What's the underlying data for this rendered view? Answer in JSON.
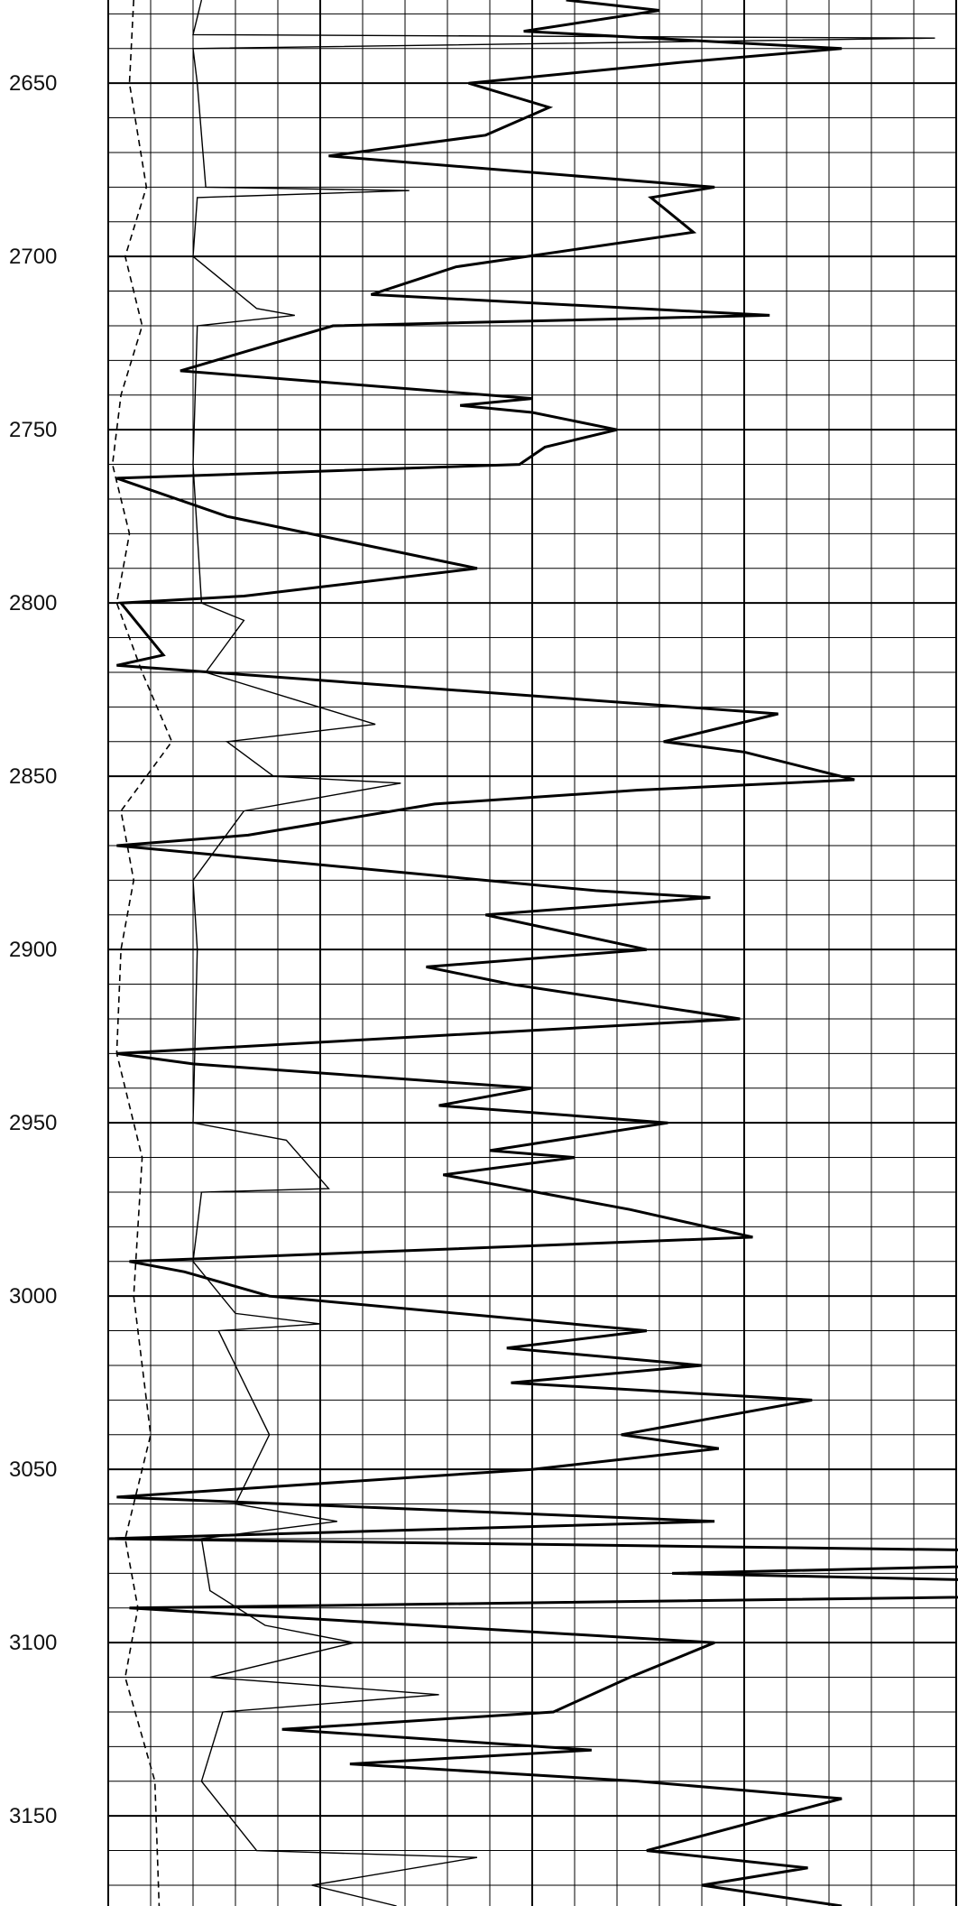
{
  "chart_data": {
    "type": "line",
    "title": "",
    "xlabel": "",
    "ylabel": "",
    "ylim": [
      2626,
      3176
    ],
    "y_axis_inverted": true,
    "y_ticks": [
      "2650",
      "2700",
      "2750",
      "2800",
      "2850",
      "2900",
      "2950",
      "3000",
      "3050",
      "3100",
      "3150"
    ],
    "grid": true,
    "x_grid": {
      "minor_divisions": 20,
      "major_every": 5
    },
    "series": [
      {
        "style": "dashed",
        "depth": [
          2626,
          2650,
          2680,
          2700,
          2720,
          2740,
          2760,
          2780,
          2800,
          2820,
          2840,
          2860,
          2880,
          2900,
          2930,
          2960,
          3000,
          3040,
          3070,
          3090,
          3110,
          3140,
          3176
        ],
        "value": [
          0.6,
          0.5,
          0.9,
          0.4,
          0.8,
          0.3,
          0.1,
          0.5,
          0.2,
          0.8,
          1.5,
          0.3,
          0.6,
          0.3,
          0.2,
          0.8,
          0.6,
          1.0,
          0.4,
          0.7,
          0.4,
          1.1,
          1.2
        ]
      },
      {
        "style": "thin",
        "depth": [
          2626,
          2636,
          2637,
          2640,
          2650,
          2680,
          2681,
          2683,
          2700,
          2715,
          2717,
          2720,
          2760,
          2800,
          2805,
          2820,
          2835,
          2840,
          2850,
          2852,
          2860,
          2880,
          2900,
          2950,
          2955,
          2969,
          2970,
          2990,
          3005,
          3008,
          3010,
          3030,
          3040,
          3060,
          3065,
          3070,
          3085,
          3095,
          3100,
          3110,
          3115,
          3120,
          3140,
          3160,
          3162,
          3170,
          3176
        ],
        "value": [
          2.2,
          2.0,
          19.5,
          2.0,
          2.1,
          2.3,
          7.1,
          2.1,
          2.0,
          3.5,
          4.4,
          2.1,
          2.0,
          2.2,
          3.2,
          2.3,
          6.3,
          2.8,
          3.9,
          6.9,
          3.2,
          2.0,
          2.1,
          2.0,
          4.2,
          5.2,
          2.2,
          2.0,
          3.0,
          5.0,
          2.6,
          3.4,
          3.8,
          3.0,
          5.4,
          2.2,
          2.4,
          3.7,
          5.8,
          2.4,
          7.8,
          2.7,
          2.2,
          3.5,
          8.7,
          4.8,
          6.8
        ]
      },
      {
        "style": "bold",
        "depth": [
          2626,
          2629,
          2635,
          2640,
          2644,
          2650,
          2657,
          2665,
          2671,
          2680,
          2683,
          2693,
          2703,
          2711,
          2717,
          2720,
          2733,
          2741,
          2743,
          2745,
          2750,
          2755,
          2760,
          2764,
          2775,
          2790,
          2798,
          2800,
          2815,
          2818,
          2832,
          2840,
          2843,
          2851,
          2854,
          2858,
          2867,
          2870,
          2883,
          2885,
          2890,
          2900,
          2905,
          2910,
          2920,
          2930,
          2933,
          2940,
          2945,
          2950,
          2958,
          2960,
          2965,
          2975,
          2983,
          2990,
          2993,
          3000,
          3010,
          3015,
          3020,
          3025,
          3030,
          3040,
          3044,
          3050,
          3058,
          3065,
          3070,
          3075,
          3080,
          3085,
          3090,
          3100,
          3110,
          3120,
          3125,
          3131,
          3135,
          3140,
          3145,
          3160,
          3165,
          3170,
          3176
        ],
        "value": [
          10.8,
          13.0,
          9.8,
          17.3,
          13.5,
          8.5,
          10.4,
          8.9,
          5.2,
          14.3,
          12.8,
          13.8,
          8.2,
          6.2,
          15.6,
          5.3,
          1.7,
          10.0,
          8.3,
          10.0,
          12.0,
          10.3,
          9.7,
          0.2,
          2.8,
          8.7,
          3.2,
          0.3,
          1.3,
          0.2,
          15.8,
          13.1,
          15.0,
          17.6,
          12.5,
          7.7,
          3.3,
          0.2,
          11.5,
          14.2,
          8.9,
          12.7,
          7.5,
          9.5,
          14.9,
          0.2,
          2.0,
          10.0,
          7.8,
          13.2,
          9.0,
          11.0,
          7.9,
          12.3,
          15.2,
          0.5,
          1.8,
          3.8,
          12.7,
          9.4,
          14.0,
          9.5,
          16.6,
          12.1,
          14.4,
          10.0,
          0.2,
          14.3,
          0.0,
          31.0,
          13.3,
          32.0,
          0.5,
          14.3,
          12.3,
          10.5,
          4.1,
          11.4,
          5.7,
          12.5,
          17.3,
          12.7,
          16.5,
          14.0,
          17.3
        ]
      },
      {
        "style": "bold",
        "depth": [
          2762,
          2764,
          2766
        ],
        "value": [
          31.0,
          25.6,
          31.0
        ]
      },
      {
        "style": "bold",
        "depth": [
          2801,
          2812,
          2815,
          2817
        ],
        "value": [
          31.0,
          30.3,
          29.0,
          31.0
        ]
      },
      {
        "style": "bold",
        "depth": [
          2930,
          2933,
          2936
        ],
        "value": [
          31.0,
          25.3,
          31.0
        ]
      }
    ]
  }
}
